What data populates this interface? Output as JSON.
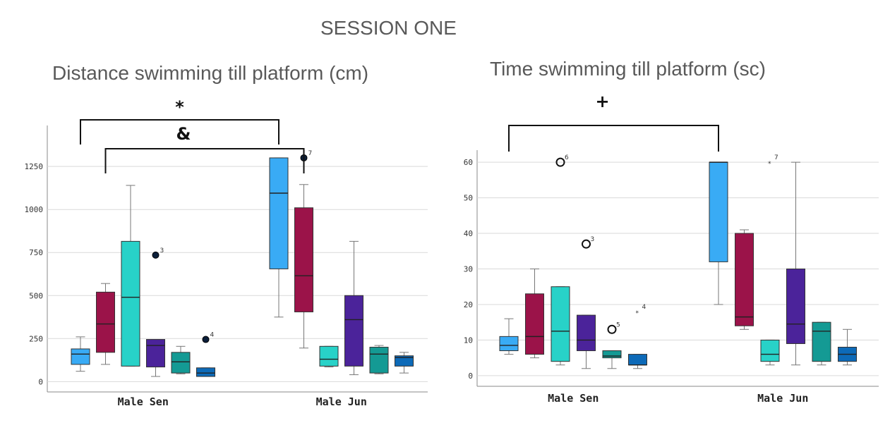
{
  "session_title": "SESSION ONE",
  "chart_data": [
    {
      "type": "box",
      "title": "Distance swimming till platform (cm)",
      "categories": [
        "Male Sen",
        "Male Jun"
      ],
      "yticks": [
        "0",
        "250",
        "500",
        "750",
        "1000",
        "1250"
      ],
      "ylim": [
        -60,
        1480
      ],
      "series_colors": [
        "#39abf5",
        "#9b1349",
        "#28d2c8",
        "#4b239a",
        "#149a94",
        "#0d6ab8"
      ],
      "groups": [
        {
          "category": "Male Sen",
          "boxes": [
            {
              "min": 60,
              "q1": 100,
              "median": 160,
              "q3": 190,
              "max": 260
            },
            {
              "min": 100,
              "q1": 170,
              "median": 335,
              "q3": 520,
              "max": 570
            },
            {
              "min": 90,
              "q1": 90,
              "median": 490,
              "q3": 815,
              "max": 1140
            },
            {
              "min": 30,
              "q1": 85,
              "median": 210,
              "q3": 245,
              "max": 245
            },
            {
              "min": 45,
              "q1": 50,
              "median": 115,
              "q3": 170,
              "max": 205
            },
            {
              "min": 30,
              "q1": 30,
              "median": 50,
              "q3": 80,
              "max": 80
            }
          ],
          "outliers": [
            {
              "box": 3,
              "value": 735,
              "label": "3"
            },
            {
              "box": 5,
              "value": 245,
              "label": "4"
            }
          ]
        },
        {
          "category": "Male Jun",
          "boxes": [
            {
              "min": 375,
              "q1": 655,
              "median": 1095,
              "q3": 1300,
              "max": 1300
            },
            {
              "min": 195,
              "q1": 405,
              "median": 615,
              "q3": 1010,
              "max": 1145
            },
            {
              "min": 85,
              "q1": 90,
              "median": 130,
              "q3": 205,
              "max": 205
            },
            {
              "min": 40,
              "q1": 90,
              "median": 360,
              "q3": 500,
              "max": 815
            },
            {
              "min": 45,
              "q1": 50,
              "median": 160,
              "q3": 200,
              "max": 210
            },
            {
              "min": 50,
              "q1": 90,
              "median": 140,
              "q3": 150,
              "max": 170
            }
          ],
          "outliers": [
            {
              "box": 1,
              "value": 1300,
              "label": "7"
            }
          ]
        }
      ],
      "annotations": [
        {
          "symbol": "*",
          "from_group": 0,
          "from_box": 0,
          "to_group": 1,
          "to_box": 0
        },
        {
          "symbol": "&",
          "from_group": 0,
          "from_box": 1,
          "to_group": 1,
          "to_box": 1
        }
      ]
    },
    {
      "type": "box",
      "title": "Time swimming till platform (sc)",
      "categories": [
        "Male Sen",
        "Male Jun"
      ],
      "yticks": [
        "0",
        "10",
        "20",
        "30",
        "40",
        "50",
        "60"
      ],
      "ylim": [
        -3,
        63
      ],
      "series_colors": [
        "#39abf5",
        "#9b1349",
        "#28d2c8",
        "#4b239a",
        "#149a94",
        "#0d6ab8"
      ],
      "groups": [
        {
          "category": "Male Sen",
          "boxes": [
            {
              "min": 6,
              "q1": 7,
              "median": 8.5,
              "q3": 11,
              "max": 16
            },
            {
              "min": 5,
              "q1": 6,
              "median": 11,
              "q3": 23,
              "max": 30
            },
            {
              "min": 3,
              "q1": 4,
              "median": 12.5,
              "q3": 25,
              "max": 25
            },
            {
              "min": 2,
              "q1": 7,
              "median": 10,
              "q3": 17,
              "max": 17
            },
            {
              "min": 2,
              "q1": 5,
              "median": 5.5,
              "q3": 7,
              "max": 7
            },
            {
              "min": 2,
              "q1": 3,
              "median": 3,
              "q3": 6,
              "max": 6
            }
          ],
          "outliers": [
            {
              "box": 2,
              "value": 60,
              "label": "6",
              "marker": "circle"
            },
            {
              "box": 3,
              "value": 37,
              "label": "3",
              "marker": "circle"
            },
            {
              "box": 4,
              "value": 13,
              "label": "5",
              "marker": "circle"
            },
            {
              "box": 5,
              "value": 18,
              "label": "4",
              "marker": "star"
            }
          ]
        },
        {
          "category": "Male Jun",
          "boxes": [
            {
              "min": 20,
              "q1": 32,
              "median": 60,
              "q3": 60,
              "max": 60
            },
            {
              "min": 13,
              "q1": 14,
              "median": 16.5,
              "q3": 40,
              "max": 41
            },
            {
              "min": 3,
              "q1": 4,
              "median": 6,
              "q3": 10,
              "max": 10
            },
            {
              "min": 3,
              "q1": 9,
              "median": 14.5,
              "q3": 30,
              "max": 60
            },
            {
              "min": 3,
              "q1": 4,
              "median": 12.5,
              "q3": 15,
              "max": 15
            },
            {
              "min": 3,
              "q1": 4,
              "median": 6,
              "q3": 8,
              "max": 13
            }
          ],
          "outliers": [
            {
              "box": 2,
              "value": 60,
              "label": "7",
              "marker": "star"
            }
          ]
        }
      ],
      "annotations": [
        {
          "symbol": "+",
          "from_group": 0,
          "from_box": 0,
          "to_group": 1,
          "to_box": 0
        }
      ]
    }
  ]
}
